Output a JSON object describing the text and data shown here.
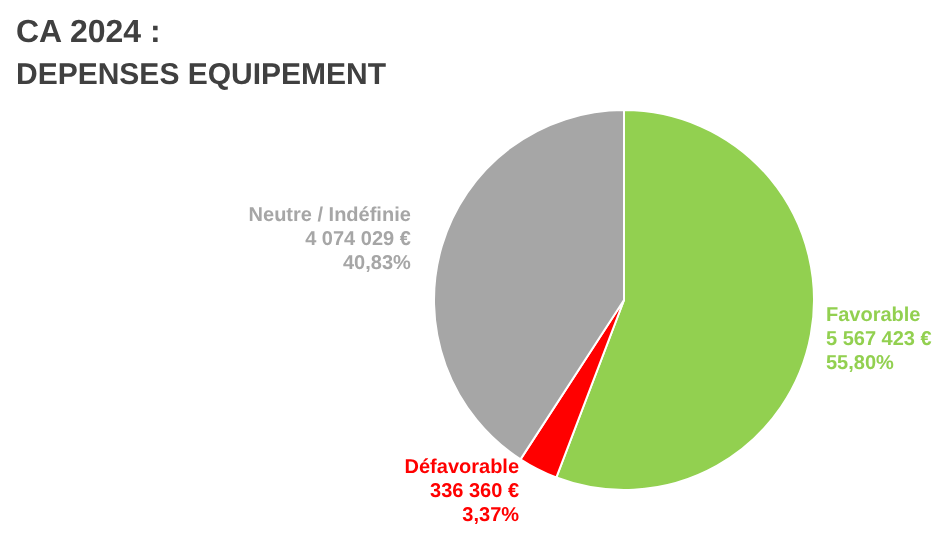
{
  "chart_data": {
    "type": "pie",
    "title": "CA 2024 :",
    "subtitle": "DEPENSES EQUIPEMENT",
    "categories": [
      "Favorable",
      "Défavorable",
      "Neutre / Indéfinie"
    ],
    "values": [
      5567423,
      336360,
      4074029
    ],
    "colors": [
      "#92d050",
      "#ff0000",
      "#a6a6a6"
    ],
    "value_labels": [
      "5 567 423 €\n55,80%",
      "336 360 €\n3,37%",
      "4 074 029 €\n40,83%"
    ]
  }
}
